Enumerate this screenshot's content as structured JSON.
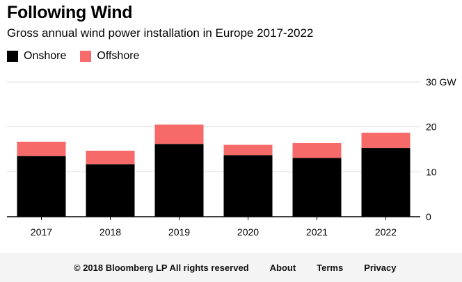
{
  "chart_data": {
    "type": "bar",
    "stacked": true,
    "title": "Following Wind",
    "subtitle": "Gross annual wind power installation in Europe 2017-2022",
    "categories": [
      "2017",
      "2018",
      "2019",
      "2020",
      "2021",
      "2022"
    ],
    "series": [
      {
        "name": "Onshore",
        "color": "#000000",
        "values": [
          13.5,
          11.7,
          16.2,
          13.7,
          13.1,
          15.3
        ]
      },
      {
        "name": "Offshore",
        "color": "#f66a6a",
        "values": [
          3.2,
          3.0,
          4.3,
          2.3,
          3.3,
          3.4
        ]
      }
    ],
    "ylim": [
      0,
      30
    ],
    "yticks": [
      0,
      10,
      20,
      30
    ],
    "ytick_labels": [
      "0",
      "10",
      "20",
      "30 GW"
    ],
    "grid": true,
    "legend_position": "top-left"
  },
  "footer": {
    "copyright": "© 2018 Bloomberg LP All rights reserved",
    "about": "About",
    "terms": "Terms",
    "privacy": "Privacy"
  }
}
